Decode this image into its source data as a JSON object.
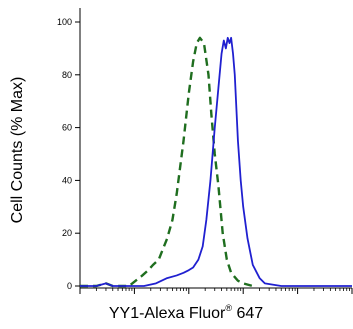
{
  "chart_data": {
    "type": "line",
    "title": "",
    "xlabel": {
      "prefix": "YY1-Alexa Fluor",
      "superscript": "®",
      "suffix": " 647"
    },
    "ylabel": "Cell Counts (% Max)",
    "xscale": "log",
    "x_decades": [
      1,
      10,
      100,
      1000,
      10000,
      100000
    ],
    "xlim": [
      1,
      100000
    ],
    "ylim": [
      -3,
      102
    ],
    "yticks": [
      0,
      20,
      40,
      60,
      80,
      100
    ],
    "ytick_labels": [
      "0",
      "20",
      "40",
      "60",
      "80",
      "100"
    ],
    "grid": false,
    "legend": "none",
    "series": [
      {
        "style": "dashed",
        "color": "#1f6e1f",
        "points": [
          [
            1.0,
            0
          ],
          [
            2.0,
            0
          ],
          [
            3.0,
            1
          ],
          [
            4.0,
            0
          ],
          [
            8.0,
            0
          ],
          [
            14,
            4
          ],
          [
            18,
            6
          ],
          [
            22,
            8
          ],
          [
            28,
            10
          ],
          [
            40,
            18
          ],
          [
            50,
            25
          ],
          [
            60,
            35
          ],
          [
            80,
            55
          ],
          [
            100,
            73
          ],
          [
            120,
            85
          ],
          [
            140,
            92
          ],
          [
            160,
            94
          ],
          [
            190,
            92
          ],
          [
            230,
            80
          ],
          [
            260,
            65
          ],
          [
            300,
            50
          ],
          [
            350,
            38
          ],
          [
            420,
            20
          ],
          [
            500,
            10
          ],
          [
            600,
            5
          ],
          [
            800,
            2
          ],
          [
            1000,
            1
          ],
          [
            1500,
            0
          ]
        ]
      },
      {
        "style": "solid",
        "color": "#2020d0",
        "points": [
          [
            1.0,
            0
          ],
          [
            2.0,
            0
          ],
          [
            3.0,
            1
          ],
          [
            4.0,
            0
          ],
          [
            6.0,
            0
          ],
          [
            15,
            0
          ],
          [
            25,
            1
          ],
          [
            40,
            3
          ],
          [
            60,
            4
          ],
          [
            80,
            5
          ],
          [
            100,
            6
          ],
          [
            120,
            7
          ],
          [
            150,
            10
          ],
          [
            180,
            15
          ],
          [
            210,
            25
          ],
          [
            250,
            40
          ],
          [
            300,
            60
          ],
          [
            350,
            75
          ],
          [
            400,
            88
          ],
          [
            440,
            93
          ],
          [
            480,
            90
          ],
          [
            520,
            94
          ],
          [
            560,
            92
          ],
          [
            600,
            94
          ],
          [
            650,
            88
          ],
          [
            700,
            80
          ],
          [
            800,
            55
          ],
          [
            900,
            40
          ],
          [
            1000,
            30
          ],
          [
            1200,
            18
          ],
          [
            1500,
            8
          ],
          [
            2000,
            3
          ],
          [
            2500,
            1
          ],
          [
            5000,
            0
          ],
          [
            20000,
            0
          ],
          [
            100000,
            0
          ]
        ]
      }
    ]
  }
}
